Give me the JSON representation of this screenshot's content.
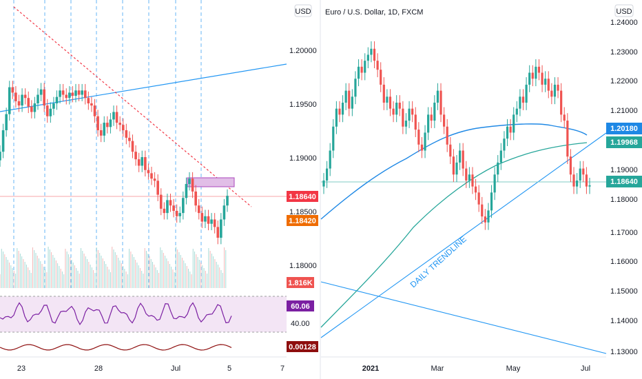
{
  "left_panel": {
    "currency_label": "USD",
    "price_ticks": [
      "1.20000",
      "1.19500",
      "1.19000",
      "1.18500",
      "1.18000"
    ],
    "price_tags": [
      {
        "text": "1.18640",
        "color": "#f23645"
      },
      {
        "text": "1.18420",
        "color": "#ef6c00"
      }
    ],
    "volume_tag": {
      "text": "1.816K",
      "color": "#ef5350"
    },
    "rsi_tag": {
      "text": "60.06",
      "color": "#7b1fa2"
    },
    "rsi_level": "40.00",
    "macd_tag": {
      "text": "0.00128",
      "color": "#8e0e0e"
    },
    "date_ticks": [
      "23",
      "28",
      "Jul",
      "5",
      "7"
    ]
  },
  "right_panel": {
    "title": "Euro / U.S. Dollar, 1D, FXCM",
    "currency_label": "USD",
    "price_ticks": [
      "1.24000",
      "1.23000",
      "1.22000",
      "1.21000",
      "1.19000",
      "1.18000",
      "1.17000",
      "1.16000",
      "1.15000",
      "1.14000",
      "1.13000"
    ],
    "price_tags": [
      {
        "text": "1.20180",
        "color": "#1e88e5"
      },
      {
        "text": "1.19968",
        "color": "#26a69a"
      },
      {
        "text": "1.18640",
        "color": "#26a69a"
      }
    ],
    "date_ticks": [
      "2021",
      "Mar",
      "May",
      "Jul"
    ],
    "trendline_label": "DAILY TRENDLINE"
  },
  "chart_data": [
    {
      "type": "candlestick",
      "symbol": "EURUSD",
      "timeframe": "intraday",
      "x_ticks": [
        "23",
        "28",
        "Jul",
        "5",
        "7"
      ],
      "y_ticks": [
        1.2,
        1.195,
        1.19,
        1.185,
        1.18
      ],
      "last_price": 1.1864,
      "marked_price": 1.1842,
      "close_path": [
        1.1905,
        1.1925,
        1.194,
        1.1965,
        1.196,
        1.1952,
        1.1948,
        1.1958,
        1.1955,
        1.1947,
        1.1942,
        1.195,
        1.1958,
        1.1963,
        1.1948,
        1.1938,
        1.1945,
        1.195,
        1.1956,
        1.1962,
        1.1958,
        1.1955,
        1.196,
        1.1957,
        1.1962,
        1.1958,
        1.1962,
        1.1955,
        1.195,
        1.1948,
        1.1938,
        1.1925,
        1.192,
        1.1932,
        1.1928,
        1.1935,
        1.1942,
        1.1932,
        1.193,
        1.1925,
        1.1918,
        1.1915,
        1.1905,
        1.1898,
        1.1892,
        1.19,
        1.1888,
        1.1885,
        1.188,
        1.1878,
        1.1865,
        1.1852,
        1.1848,
        1.186,
        1.1855,
        1.185,
        1.1845,
        1.1848,
        1.1862,
        1.1875,
        1.188,
        1.1868,
        1.1855,
        1.1848,
        1.184,
        1.1845,
        1.1838,
        1.1842,
        1.1835,
        1.1825,
        1.1842,
        1.1855,
        1.1864
      ],
      "indicators": {
        "volume_last": "1.816K",
        "rsi_last": 60.06,
        "rsi_level": 40.0,
        "macd_last": 0.00128
      }
    },
    {
      "type": "candlestick",
      "title": "Euro / U.S. Dollar, 1D, FXCM",
      "timeframe": "1D",
      "x_ticks": [
        "2021",
        "Mar",
        "May",
        "Jul"
      ],
      "y_ticks": [
        1.24,
        1.23,
        1.22,
        1.21,
        1.19,
        1.18,
        1.17,
        1.16,
        1.15,
        1.14,
        1.13
      ],
      "close_path": [
        1.188,
        1.192,
        1.198,
        1.206,
        1.212,
        1.21,
        1.214,
        1.218,
        1.212,
        1.216,
        1.222,
        1.226,
        1.224,
        1.228,
        1.23,
        1.232,
        1.228,
        1.225,
        1.22,
        1.214,
        1.216,
        1.212,
        1.21,
        1.214,
        1.212,
        1.206,
        1.208,
        1.212,
        1.21,
        1.205,
        1.2,
        1.198,
        1.204,
        1.21,
        1.208,
        1.214,
        1.218,
        1.21,
        1.206,
        1.2,
        1.196,
        1.19,
        1.194,
        1.198,
        1.192,
        1.188,
        1.19,
        1.186,
        1.184,
        1.18,
        1.176,
        1.174,
        1.178,
        1.184,
        1.19,
        1.194,
        1.198,
        1.202,
        1.206,
        1.204,
        1.21,
        1.212,
        1.216,
        1.214,
        1.22,
        1.224,
        1.222,
        1.226,
        1.224,
        1.22,
        1.222,
        1.218,
        1.216,
        1.22,
        1.218,
        1.21,
        1.208,
        1.196,
        1.19,
        1.186,
        1.188,
        1.192,
        1.19,
        1.186,
        1.1864
      ],
      "last_price": 1.1864,
      "moving_averages": [
        {
          "value_last": 1.2018,
          "color": "#1e88e5"
        },
        {
          "value_last": 1.19968,
          "color": "#26a69a"
        }
      ],
      "annotations": [
        "DAILY TRENDLINE"
      ]
    }
  ]
}
